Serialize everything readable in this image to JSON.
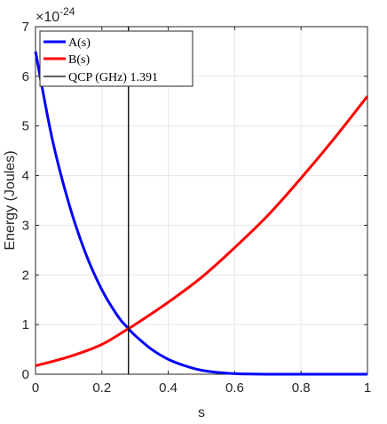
{
  "chart_data": {
    "type": "line",
    "xlabel": "s",
    "ylabel": "Energy (Joules)",
    "y_multiplier": "×10",
    "y_exponent": "-24",
    "xlim": [
      0,
      1
    ],
    "ylim": [
      0,
      7
    ],
    "x_ticks": [
      0,
      0.2,
      0.4,
      0.6,
      0.8,
      1
    ],
    "x_tick_labels": [
      "0",
      "0.2",
      "0.4",
      "0.6",
      "0.8",
      "1"
    ],
    "y_ticks": [
      0,
      1,
      2,
      3,
      4,
      5,
      6,
      7
    ],
    "y_tick_labels": [
      "0",
      "1",
      "2",
      "3",
      "4",
      "5",
      "6",
      "7"
    ],
    "grid": true,
    "legend_position": "top-left",
    "series": [
      {
        "name": "A(s)",
        "color": "#0000ff",
        "x": [
          0,
          0.05,
          0.1,
          0.15,
          0.2,
          0.25,
          0.28,
          0.3,
          0.35,
          0.4,
          0.45,
          0.5,
          0.55,
          0.6,
          0.65,
          0.7,
          0.8,
          0.9,
          1.0
        ],
        "y": [
          6.5,
          4.75,
          3.45,
          2.45,
          1.7,
          1.15,
          0.92,
          0.78,
          0.5,
          0.3,
          0.17,
          0.08,
          0.035,
          0.012,
          0.004,
          0.001,
          0,
          0,
          0
        ]
      },
      {
        "name": "B(s)",
        "color": "#ff0000",
        "x": [
          0,
          0.1,
          0.2,
          0.28,
          0.3,
          0.4,
          0.5,
          0.6,
          0.7,
          0.8,
          0.9,
          1.0
        ],
        "y": [
          0.17,
          0.35,
          0.6,
          0.92,
          1.0,
          1.45,
          1.95,
          2.55,
          3.2,
          3.95,
          4.75,
          5.6
        ]
      }
    ],
    "vertical_line": {
      "name": "QCP (GHz) 1.391",
      "x": 0.28,
      "color": "#000000"
    }
  }
}
